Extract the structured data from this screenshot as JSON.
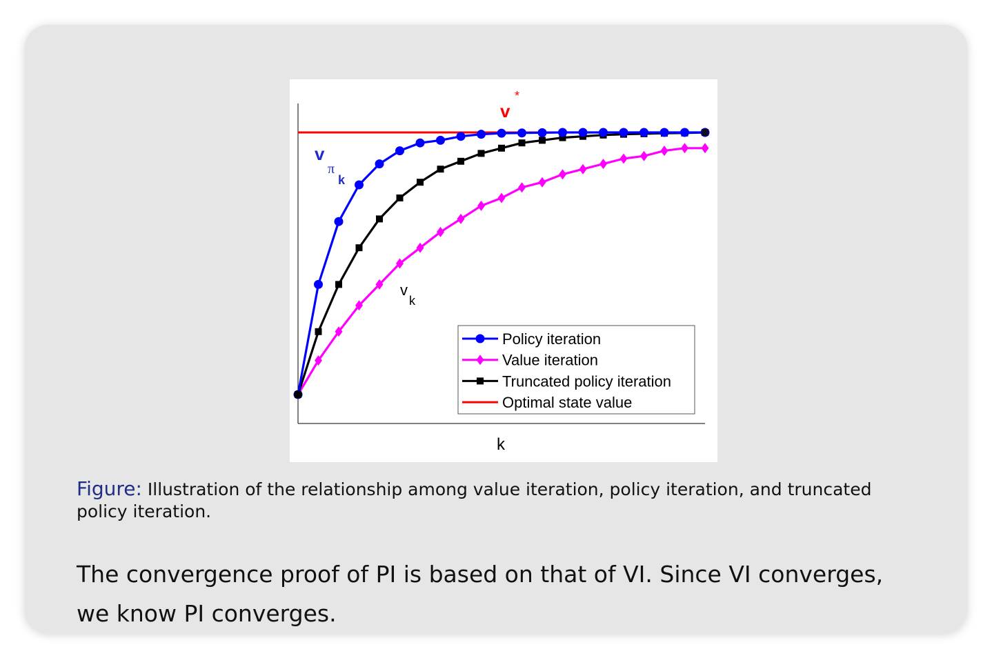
{
  "chart_data": {
    "type": "line",
    "xlabel": "k",
    "x": [
      0,
      1,
      2,
      3,
      4,
      5,
      6,
      7,
      8,
      9,
      10,
      11,
      12,
      13,
      14,
      15,
      16,
      17,
      18,
      19,
      20
    ],
    "ylim": [
      0,
      1.12
    ],
    "series": [
      {
        "name": "Policy iteration",
        "color": "#0000ff",
        "marker": "circle",
        "values": [
          0,
          0.42,
          0.66,
          0.8,
          0.88,
          0.93,
          0.96,
          0.97,
          0.985,
          0.993,
          0.997,
          0.998,
          0.999,
          1.0,
          1.0,
          1.0,
          1.0,
          1.0,
          1.0,
          1.0,
          1.0
        ]
      },
      {
        "name": "Value iteration",
        "color": "#ff00ff",
        "marker": "diamond",
        "values": [
          0,
          0.13,
          0.24,
          0.34,
          0.42,
          0.5,
          0.56,
          0.62,
          0.67,
          0.72,
          0.75,
          0.79,
          0.81,
          0.84,
          0.86,
          0.88,
          0.9,
          0.91,
          0.93,
          0.94,
          0.94
        ]
      },
      {
        "name": "Truncated policy iteration",
        "color": "#000000",
        "marker": "square",
        "values": [
          0,
          0.24,
          0.42,
          0.56,
          0.67,
          0.75,
          0.81,
          0.86,
          0.89,
          0.92,
          0.94,
          0.96,
          0.97,
          0.98,
          0.985,
          0.99,
          0.993,
          0.995,
          0.997,
          0.998,
          1.0
        ]
      },
      {
        "name": "Optimal state value",
        "color": "#ff0000",
        "marker": "none",
        "values": [
          1,
          1,
          1,
          1,
          1,
          1,
          1,
          1,
          1,
          1,
          1,
          1,
          1,
          1,
          1,
          1,
          1,
          1,
          1,
          1,
          1
        ]
      }
    ],
    "annotations": {
      "vstar": "v",
      "vstar_sup": "*",
      "vpi": "v",
      "vpi_sub": "π",
      "vpi_subsub": "k",
      "vk": "v",
      "vk_sub": "k"
    },
    "legend": [
      "Policy iteration",
      "Value iteration",
      "Truncated policy iteration",
      "Optimal state value"
    ]
  },
  "caption": {
    "label": "Figure:",
    "text": "Illustration of the relationship among value iteration, policy iteration, and truncated policy iteration."
  },
  "body_text": "The convergence proof of PI is based on that of VI. Since VI converges, we know PI converges."
}
